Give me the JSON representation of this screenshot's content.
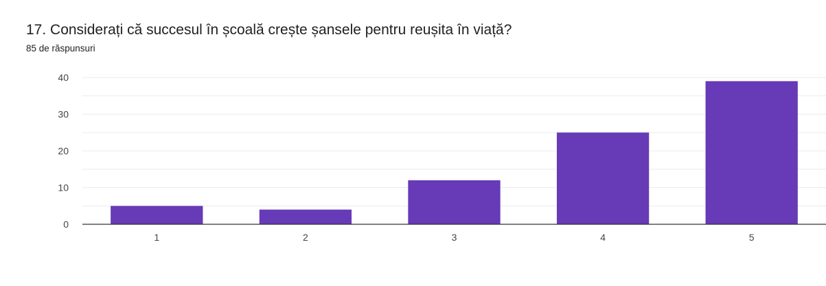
{
  "question": {
    "title": "17. Considerați că succesul în școală crește șansele pentru reușita în viață?",
    "responses": "85 de răspunsuri"
  },
  "colors": {
    "bar": "#673ab7",
    "grid": "#ebebeb",
    "axis": "#333333"
  },
  "chart_data": {
    "type": "bar",
    "categories": [
      "1",
      "2",
      "3",
      "4",
      "5"
    ],
    "values": [
      5,
      4,
      12,
      25,
      39
    ],
    "xlabel": "",
    "ylabel": "",
    "ylim": [
      0,
      40
    ],
    "yticks": [
      "0",
      "10",
      "20",
      "30",
      "40"
    ],
    "grid": true,
    "legend": "none"
  }
}
